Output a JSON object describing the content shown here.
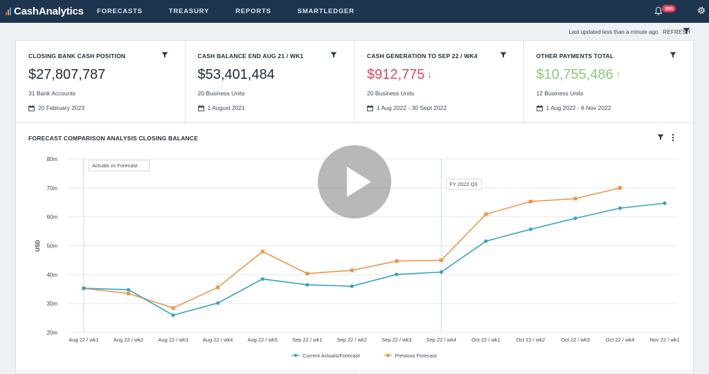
{
  "app": {
    "logo_text": "CashAnalytics",
    "logo_colors": [
      "#e8463a",
      "#f5a623",
      "#3fa9f5"
    ],
    "nav": [
      "FORECASTS",
      "TREASURY",
      "REPORTS",
      "SMARTLEDGER"
    ],
    "notification_count": "355",
    "colors": {
      "topbar": "#1e3550",
      "badge": "#e53950"
    }
  },
  "status": {
    "last_updated": "Last updated less than a minute ago",
    "refresh_label": "REFRESH"
  },
  "cards": [
    {
      "title": "CLOSING BANK CASH POSITION",
      "value": "$27,807,787",
      "trend": "",
      "sub": "31 Bank Accounts",
      "date": "20 February 2023"
    },
    {
      "title": "CASH BALANCE END AUG 21 / WK1",
      "value": "$53,401,484",
      "trend": "",
      "sub": "20 Business Units",
      "date": "1 August 2021"
    },
    {
      "title": "CASH GENERATION TO SEP 22 / WK4",
      "value": "$912,775",
      "trend": "↓",
      "sub": "20 Business Units",
      "date": "1 Aug 2022 - 30 Sept 2022"
    },
    {
      "title": "OTHER PAYMENTS TOTAL",
      "value": "$10,755,486",
      "trend": "↑",
      "sub": "12 Business Units",
      "date": "1 Aug 2022 - 6 Nov 2022"
    }
  ],
  "chart_data": {
    "type": "line",
    "title": "FORECAST COMPARISON ANALYSIS CLOSING BALANCE",
    "ylabel": "USD",
    "ylim": [
      20,
      80
    ],
    "yticks": [
      "20m",
      "30m",
      "40m",
      "50m",
      "60m",
      "70m",
      "80m"
    ],
    "categories": [
      "Aug 22 / wk1",
      "Aug 22 / wk2",
      "Aug 22 / wk3",
      "Aug 22 / wk4",
      "Aug 22 / wk5",
      "Sep 22 / wk1",
      "Sep 22 / wk2",
      "Sep 22 / wk3",
      "Sep 22 / wk4",
      "Oct 22 / wk1",
      "Oct 22 / wk2",
      "Oct 22 / wk3",
      "Oct 22 / wk4",
      "Nov 22 / wk1"
    ],
    "series": [
      {
        "name": "Current Actuals/Forecast",
        "color": "#3a9fc7",
        "marker": "circle",
        "values": [
          35.3,
          34.8,
          26.0,
          30.2,
          38.5,
          36.5,
          36.0,
          40.1,
          40.9,
          51.6,
          55.7,
          59.5,
          63.0,
          64.7
        ]
      },
      {
        "name": "Previous Forecast",
        "color": "#f0954a",
        "marker": "square",
        "values": [
          35.3,
          33.5,
          28.5,
          35.6,
          48.0,
          40.4,
          41.5,
          44.7,
          45.0,
          60.9,
          65.3,
          66.3,
          70.0,
          null
        ]
      }
    ],
    "annotations": [
      {
        "label": "Actuals vs Forecast",
        "at_category": 0
      },
      {
        "label": "FY 2022 Q3",
        "at_category": 8
      }
    ],
    "legend": "bottom-center",
    "grid": true
  }
}
